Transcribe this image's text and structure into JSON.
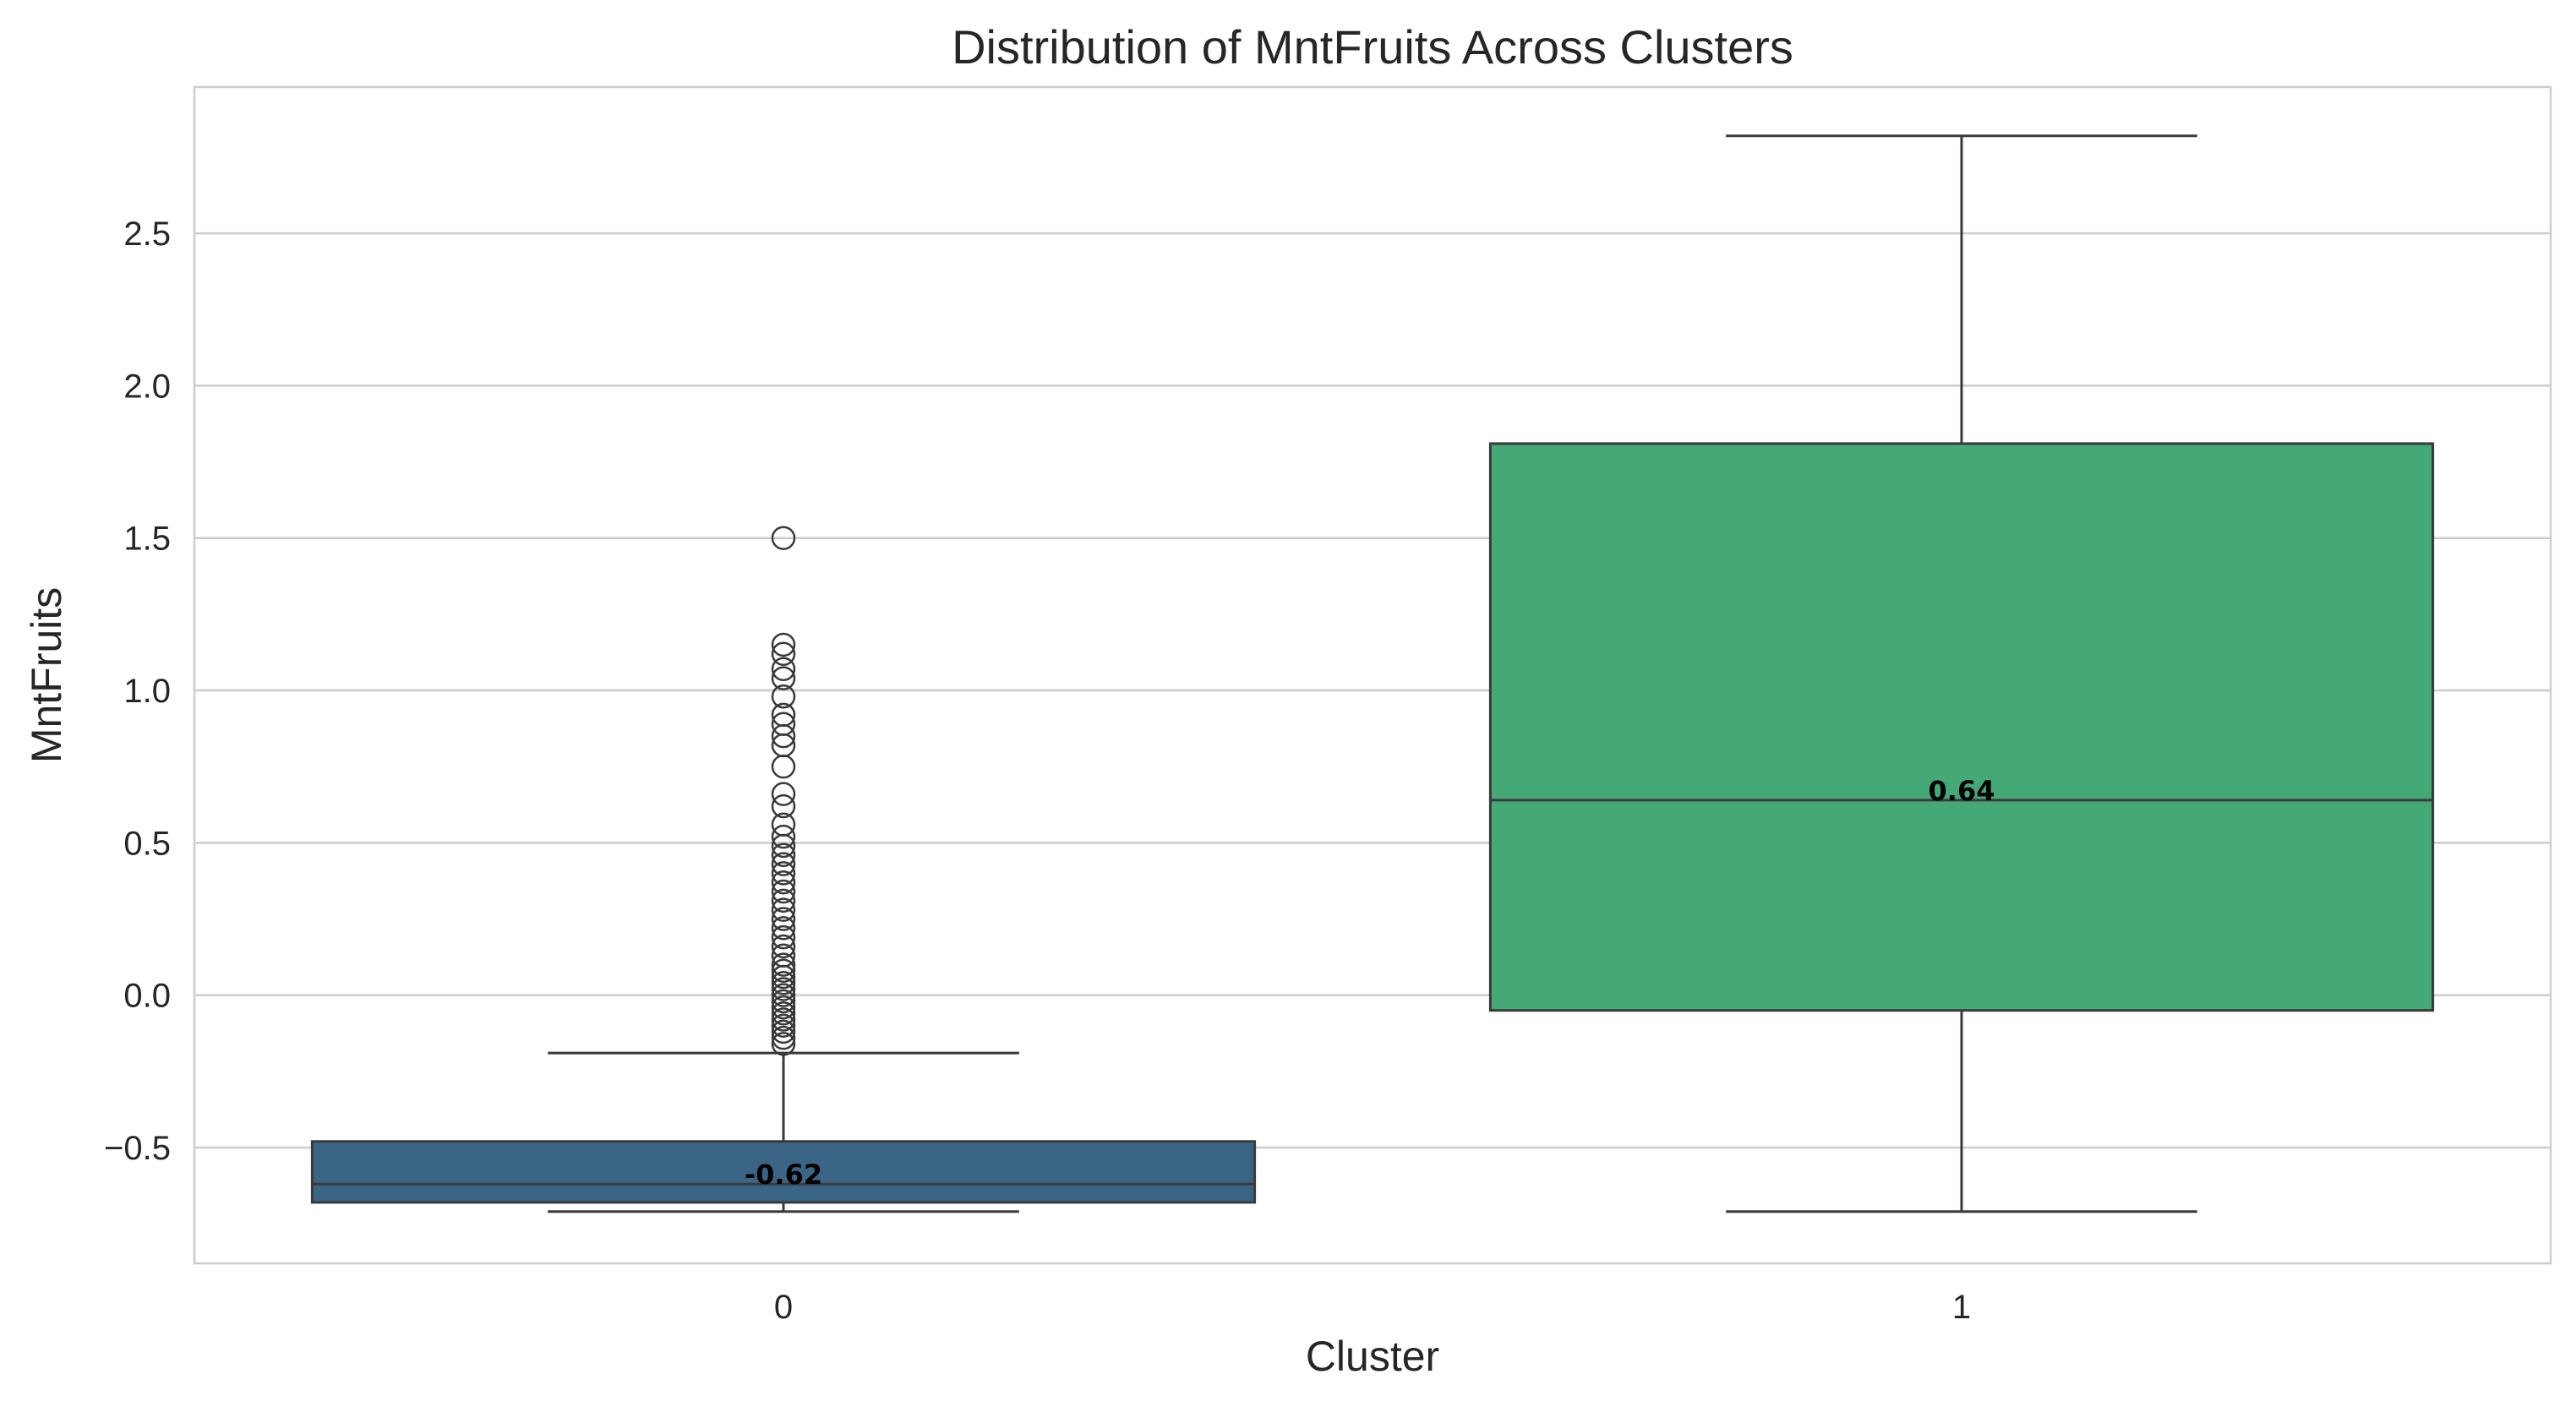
{
  "chart_data": {
    "type": "box",
    "title": "Distribution of MntFruits Across Clusters",
    "xlabel": "Cluster",
    "ylabel": "MntFruits",
    "categories": [
      "0",
      "1"
    ],
    "ylim": [
      -0.88,
      2.98
    ],
    "yticks": [
      -0.5,
      0.0,
      0.5,
      1.0,
      1.5,
      2.0,
      2.5
    ],
    "ytick_labels": [
      "−0.5",
      "0.0",
      "0.5",
      "1.0",
      "1.5",
      "2.0",
      "2.5"
    ],
    "grid": true,
    "colors": {
      "cluster_0": "#3b6584",
      "cluster_1": "#45a877",
      "edge": "#3a3a3a",
      "grid": "#cccccc",
      "frame": "#cccccc"
    },
    "boxes": [
      {
        "category": "0",
        "whisker_low": -0.71,
        "q1": -0.68,
        "median": -0.62,
        "q3": -0.48,
        "whisker_high": -0.19,
        "median_label": "-0.62",
        "outliers": [
          -0.16,
          -0.14,
          -0.12,
          -0.1,
          -0.08,
          -0.06,
          -0.04,
          -0.02,
          0.0,
          0.02,
          0.04,
          0.06,
          0.08,
          0.1,
          0.13,
          0.16,
          0.19,
          0.22,
          0.25,
          0.28,
          0.31,
          0.34,
          0.37,
          0.4,
          0.43,
          0.46,
          0.49,
          0.52,
          0.56,
          0.62,
          0.66,
          0.75,
          0.82,
          0.85,
          0.89,
          0.92,
          0.98,
          1.04,
          1.07,
          1.12,
          1.15,
          1.5
        ]
      },
      {
        "category": "1",
        "whisker_low": -0.71,
        "q1": -0.05,
        "median": 0.64,
        "q3": 1.81,
        "whisker_high": 2.82,
        "median_label": "0.64",
        "outliers": []
      }
    ]
  }
}
